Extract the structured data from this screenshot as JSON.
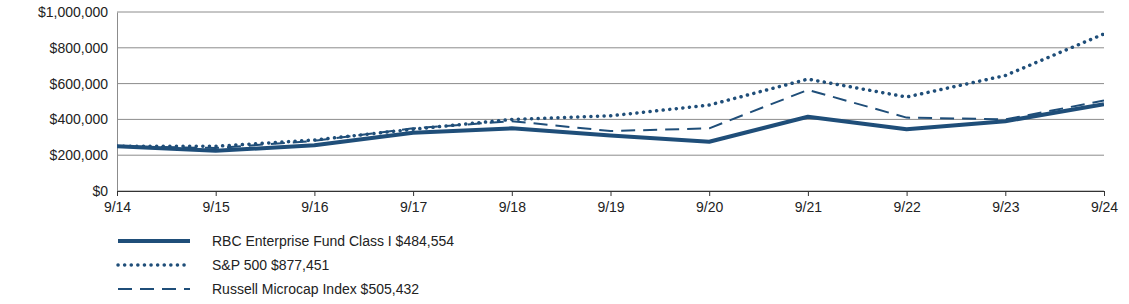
{
  "chart_data": {
    "type": "line",
    "categories": [
      "9/14",
      "9/15",
      "9/16",
      "9/17",
      "9/18",
      "9/19",
      "9/20",
      "9/21",
      "9/22",
      "9/23",
      "9/24"
    ],
    "series": [
      {
        "name": "RBC Enterprise Fund Class I $484,554",
        "color": "#1f4e79",
        "line_style": "solid",
        "values": [
          250000,
          225000,
          255000,
          325000,
          350000,
          310000,
          275000,
          415000,
          345000,
          390000,
          484554
        ]
      },
      {
        "name": "S&P 500 $877,451",
        "color": "#1f4e79",
        "line_style": "dotted",
        "values": [
          250000,
          250000,
          285000,
          345000,
          400000,
          420000,
          480000,
          625000,
          525000,
          645000,
          877451
        ]
      },
      {
        "name": "Russell Microcap Index $505,432",
        "color": "#1f4e79",
        "line_style": "dashed",
        "values": [
          250000,
          240000,
          280000,
          350000,
          390000,
          335000,
          350000,
          565000,
          410000,
          400000,
          505432
        ]
      }
    ],
    "ylim": [
      0,
      1000000
    ],
    "yticks": [
      {
        "value": 0,
        "label": "$0"
      },
      {
        "value": 200000,
        "label": "$200,000"
      },
      {
        "value": 400000,
        "label": "$400,000"
      },
      {
        "value": 600000,
        "label": "$600,000"
      },
      {
        "value": 800000,
        "label": "$800,000"
      },
      {
        "value": 1000000,
        "label": "$1,000,000"
      }
    ],
    "grid": true,
    "legend": "bottom"
  }
}
